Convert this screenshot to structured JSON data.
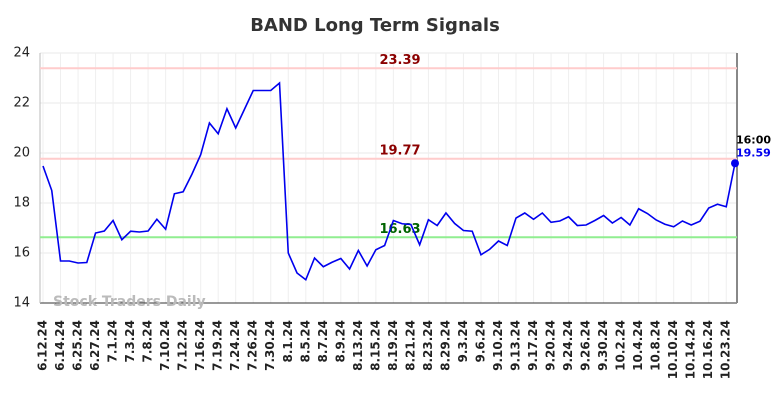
{
  "chart_data": {
    "type": "line",
    "title": "BAND Long Term Signals",
    "categories": [
      "6.12.24",
      null,
      "6.14.24",
      null,
      "6.25.24",
      null,
      "6.27.24",
      null,
      "7.1.24",
      null,
      "7.3.24",
      null,
      "7.8.24",
      null,
      "7.10.24",
      null,
      "7.12.24",
      null,
      "7.16.24",
      null,
      "7.19.24",
      null,
      "7.24.24",
      null,
      "7.26.24",
      null,
      "7.30.24",
      null,
      "8.1.24",
      null,
      "8.5.24",
      null,
      "8.7.24",
      null,
      "8.9.24",
      null,
      "8.13.24",
      null,
      "8.15.24",
      null,
      "8.19.24",
      null,
      "8.21.24",
      null,
      "8.23.24",
      null,
      "8.29.24",
      null,
      "9.3.24",
      null,
      "9.6.24",
      null,
      "9.10.24",
      null,
      "9.13.24",
      null,
      "9.17.24",
      null,
      "9.20.24",
      null,
      "9.24.24",
      null,
      "9.26.24",
      null,
      "9.30.24",
      null,
      "10.2.24",
      null,
      "10.4.24",
      null,
      "10.8.24",
      null,
      "10.10.24",
      null,
      "10.14.24",
      null,
      "10.16.24",
      null,
      "10.23.24",
      null
    ],
    "values": [
      19.48,
      18.5,
      15.68,
      15.68,
      15.6,
      15.62,
      16.8,
      16.88,
      17.3,
      16.53,
      16.87,
      16.84,
      16.88,
      17.35,
      16.95,
      18.37,
      18.45,
      19.15,
      19.93,
      21.2,
      20.77,
      21.77,
      21.0,
      21.75,
      22.5,
      22.5,
      22.5,
      22.8,
      16.0,
      15.2,
      14.93,
      15.8,
      15.45,
      15.63,
      15.78,
      15.36,
      16.1,
      15.48,
      16.13,
      16.3,
      17.3,
      17.17,
      17.14,
      16.33,
      17.33,
      17.1,
      17.6,
      17.18,
      16.9,
      16.87,
      15.93,
      16.15,
      16.48,
      16.3,
      17.4,
      17.6,
      17.35,
      17.6,
      17.23,
      17.28,
      17.45,
      17.1,
      17.12,
      17.3,
      17.5,
      17.2,
      17.42,
      17.12,
      17.77,
      17.58,
      17.32,
      17.15,
      17.05,
      17.28,
      17.12,
      17.27,
      17.8,
      17.95,
      17.85,
      19.59
    ],
    "color": "#0000ee",
    "hlines": [
      {
        "value": 23.39,
        "color": "#ffcccc",
        "label_color": "#8b0000"
      },
      {
        "value": 19.77,
        "color": "#ffcccc",
        "label_color": "#8b0000"
      },
      {
        "value": 16.63,
        "color": "#90ee90",
        "label_color": "#006400"
      }
    ],
    "last_time": "16:00",
    "watermark": "Stock Traders Daily",
    "ylim": [
      14,
      24
    ],
    "yticks": [
      14,
      16,
      18,
      20,
      22,
      24
    ],
    "grid": true
  }
}
